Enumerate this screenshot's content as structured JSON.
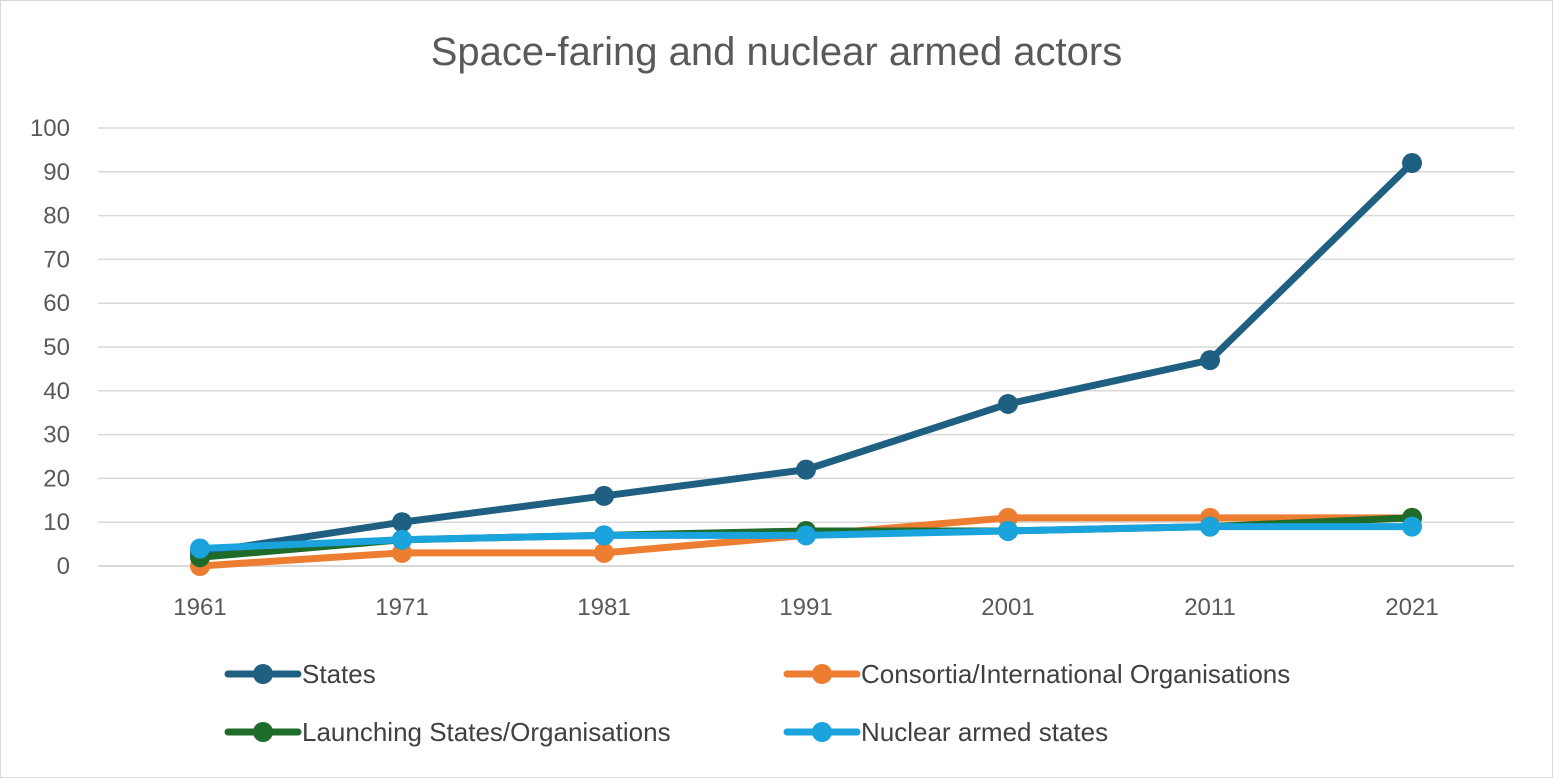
{
  "chart_data": {
    "type": "line",
    "title": "Space-faring and nuclear armed actors",
    "xlabel": "",
    "ylabel": "",
    "categories": [
      "1961",
      "1971",
      "1981",
      "1991",
      "2001",
      "2011",
      "2021"
    ],
    "ylim": [
      0,
      100
    ],
    "yticks": [
      "0",
      "10",
      "20",
      "30",
      "40",
      "50",
      "60",
      "70",
      "80",
      "90",
      "100"
    ],
    "grid": true,
    "legend_position": "bottom",
    "series": [
      {
        "name": "States",
        "color": "#1f5f82",
        "values": [
          3,
          10,
          16,
          22,
          37,
          47,
          92
        ]
      },
      {
        "name": "Consortia/International Organisations",
        "color": "#ed7d31",
        "values": [
          0,
          3,
          3,
          7,
          11,
          11,
          11
        ]
      },
      {
        "name": "Launching States/Organisations",
        "color": "#1e6b2a",
        "values": [
          2,
          6,
          7,
          8,
          8,
          9,
          11
        ]
      },
      {
        "name": "Nuclear armed states",
        "color": "#1aa3dc",
        "values": [
          4,
          6,
          7,
          7,
          8,
          9,
          9
        ]
      }
    ]
  }
}
